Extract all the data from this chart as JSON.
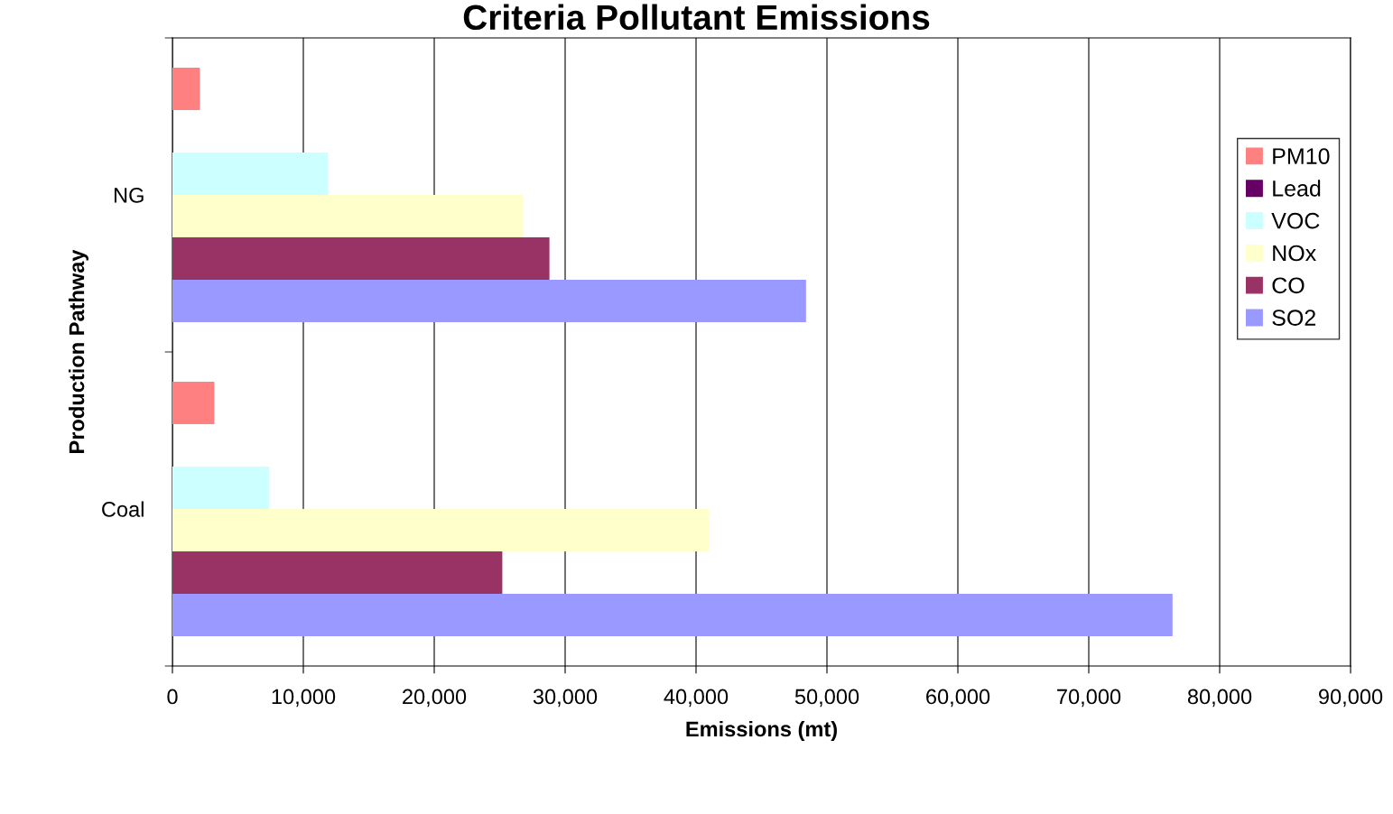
{
  "chart_data": {
    "type": "bar",
    "orientation": "horizontal",
    "title": "Criteria Pollutant Emissions",
    "xlabel": "Emissions (mt)",
    "ylabel": "Production Pathway",
    "categories": [
      "NG",
      "Coal"
    ],
    "series": [
      {
        "name": "PM10",
        "color": "#ff8080",
        "values": [
          2100,
          3200
        ]
      },
      {
        "name": "Lead",
        "color": "#660066",
        "values": [
          0,
          0
        ]
      },
      {
        "name": "VOC",
        "color": "#ccffff",
        "values": [
          11900,
          7400
        ]
      },
      {
        "name": "NOx",
        "color": "#ffffcc",
        "values": [
          26800,
          41000
        ]
      },
      {
        "name": "CO",
        "color": "#993366",
        "values": [
          28800,
          25200
        ]
      },
      {
        "name": "SO2",
        "color": "#9999ff",
        "values": [
          48400,
          76400
        ]
      }
    ],
    "xlim": [
      0,
      90000
    ],
    "xticks": [
      {
        "value": 0,
        "label": "0"
      },
      {
        "value": 10000,
        "label": "10,000"
      },
      {
        "value": 20000,
        "label": "20,000"
      },
      {
        "value": 30000,
        "label": "30,000"
      },
      {
        "value": 40000,
        "label": "40,000"
      },
      {
        "value": 50000,
        "label": "50,000"
      },
      {
        "value": 60000,
        "label": "60,000"
      },
      {
        "value": 70000,
        "label": "70,000"
      },
      {
        "value": 80000,
        "label": "80,000"
      },
      {
        "value": 90000,
        "label": "90,000"
      }
    ],
    "grid": "x",
    "legend": "right"
  }
}
